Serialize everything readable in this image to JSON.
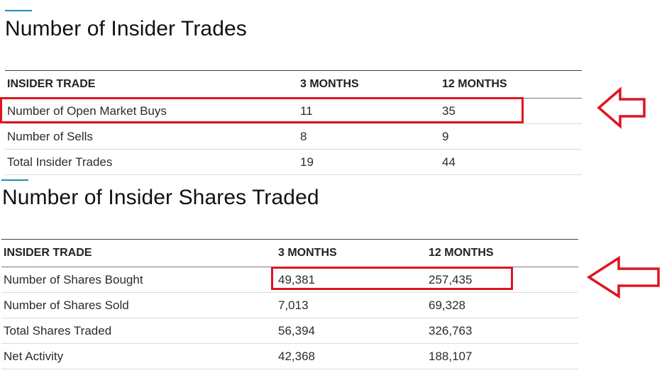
{
  "section1": {
    "title": "Number of Insider Trades",
    "columns": [
      "INSIDER TRADE",
      "3 MONTHS",
      "12 MONTHS"
    ],
    "rows": [
      [
        "Number of Open Market Buys",
        "11",
        "35"
      ],
      [
        "Number of Sells",
        "8",
        "9"
      ],
      [
        "Total Insider Trades",
        "19",
        "44"
      ]
    ]
  },
  "section2": {
    "title": "Number of Insider Shares Traded",
    "columns": [
      "INSIDER TRADE",
      "3 MONTHS",
      "12 MONTHS"
    ],
    "rows": [
      [
        "Number of Shares Bought",
        "49,381",
        "257,435"
      ],
      [
        "Number of Shares Sold",
        "7,013",
        "69,328"
      ],
      [
        "Total Shares Traded",
        "56,394",
        "326,763"
      ],
      [
        "Net Activity",
        "42,368",
        "188,107"
      ]
    ]
  },
  "annotations": {
    "color": "#e0141e",
    "accent_color": "#1e8fb0"
  }
}
